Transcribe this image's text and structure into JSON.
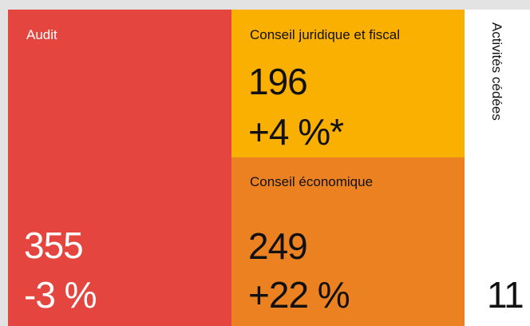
{
  "blocks": [
    {
      "label": "Audit",
      "value": 355,
      "change": "-3 %"
    },
    {
      "label": "Conseil juridique et fiscal",
      "value": 196,
      "change": "+4 %*"
    },
    {
      "label": "Conseil économique",
      "value": 249,
      "change": "+22 %"
    },
    {
      "label": "Activités cédées",
      "value": 11
    }
  ]
}
